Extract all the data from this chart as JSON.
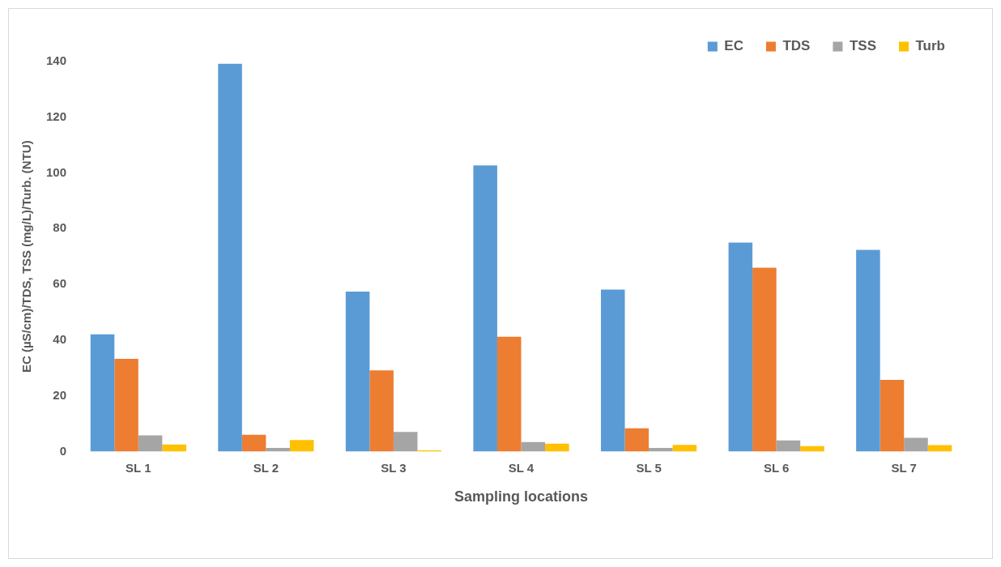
{
  "chart_data": {
    "type": "bar",
    "xlabel": "Sampling locations",
    "ylabel": "EC (µS/cm)/TDS, TSS (mg/L)/Turb. (NTU)",
    "categories": [
      "SL 1",
      "SL 2",
      "SL 3",
      "SL 4",
      "SL 5",
      "SL 6",
      "SL 7"
    ],
    "series": [
      {
        "name": "EC",
        "color": "#5b9bd5",
        "values": [
          42.1,
          139.2,
          57.4,
          102.7,
          58.1,
          75.0,
          72.4
        ]
      },
      {
        "name": "TDS",
        "color": "#ed7d31",
        "values": [
          33.3,
          6.0,
          29.1,
          41.2,
          8.3,
          66.0,
          25.7
        ]
      },
      {
        "name": "TSS",
        "color": "#a5a5a5",
        "values": [
          5.8,
          1.3,
          7.0,
          3.4,
          1.3,
          4.0,
          4.9
        ]
      },
      {
        "name": "Turb",
        "color": "#ffc000",
        "values": [
          2.5,
          4.1,
          0.4,
          2.8,
          2.4,
          1.9,
          2.3
        ]
      }
    ],
    "ylim": [
      0,
      140
    ],
    "yticks": [
      0,
      20,
      40,
      60,
      80,
      100,
      120,
      140
    ],
    "grid": false,
    "legend": "top right"
  }
}
